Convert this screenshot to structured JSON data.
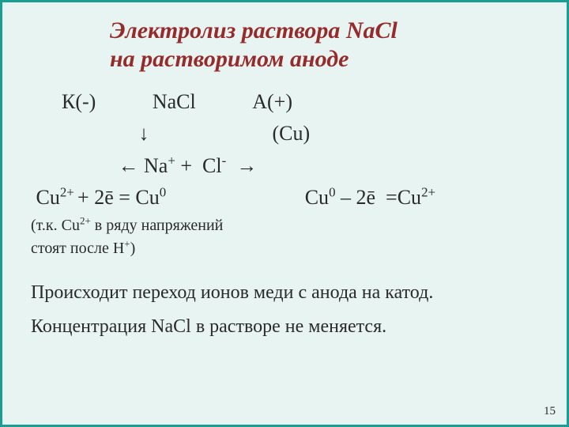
{
  "colors": {
    "background": "#e8f4f2",
    "border": "#1a9e94",
    "title": "#962b2b",
    "text": "#2a2a2a"
  },
  "typography": {
    "family": "Times New Roman",
    "title_fontsize": 30,
    "title_style": "italic bold",
    "body_fontsize": 26,
    "small_fontsize": 20,
    "para_fontsize": 24,
    "pagenum_fontsize": 15
  },
  "title_lines": {
    "l1": "Электролиз раствора NaCl",
    "l2": "на растворимом аноде"
  },
  "body": {
    "r1_cathode": "К(-)",
    "r1_salt": "NaCl",
    "r1_anode": "А(+)",
    "r2_arrow": "↓",
    "r2_cu": "(Cu)",
    "r3_html": "← Na<sup>+</sup> +  Cl<sup>-</sup>  →",
    "r4_left_html": " Cu<sup>2+ </sup>+ 2ē = Cu<sup>0</sup>",
    "r4_right_html": "Cu<sup>0</sup> – 2ē  =Cu<sup>2+</sup>",
    "note1_html": "(т.к. Cu<sup>2+</sup> в ряду напряжений",
    "note2_html": "стоят после H<sup>+</sup>)",
    "para1": "Происходит переход ионов меди с анода на катод.",
    "para2": "Концентрация NaCl в растворе не меняется."
  },
  "page_number": "15"
}
